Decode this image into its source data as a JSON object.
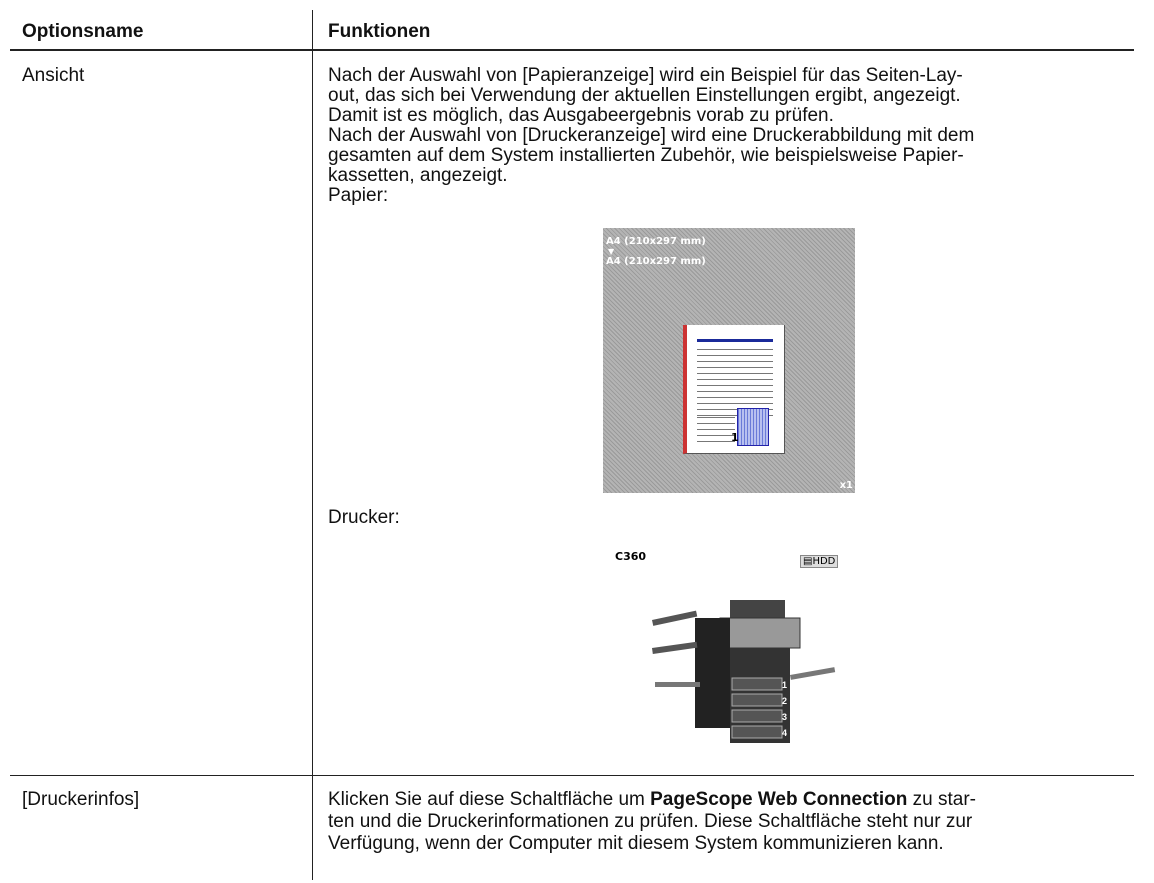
{
  "table": {
    "header": [
      "Optionsname",
      "Funktionen"
    ],
    "rows": [
      {
        "name": "Ansicht",
        "lines": [
          "Nach der Auswahl von [Papieranzeige] wird ein Beispiel für das Seiten-Lay-",
          "out, das sich bei Verwendung der aktuellen Einstellungen ergibt, angezeigt.",
          "Damit ist es möglich, das Ausgabeergebnis vorab zu prüfen.",
          "Nach der Auswahl von [Druckeranzeige] wird eine Druckerabbildung mit dem",
          "gesamten auf dem System installierten Zubehör, wie beispielsweise Papier-",
          "kassetten, angezeigt."
        ],
        "paper_label": "Papier:",
        "paper_preview": {
          "source": "A4 (210x297 mm)",
          "arrow": "▼",
          "output": "A4 (210x297 mm)",
          "page_number": "1",
          "copies": "x1"
        },
        "printer_label": "Drucker:",
        "printer_preview": {
          "model": "C360",
          "hdd": "HDD",
          "trays": [
            "1",
            "2",
            "3",
            "4"
          ]
        }
      },
      {
        "name": "[Druckerinfos]",
        "lines": [
          [
            "Klicken Sie auf diese Schaltfläche um ",
            "PageScope Web Connection",
            " zu star-"
          ],
          "ten und die Druckerinformationen zu prüfen. Diese Schaltfläche steht nur zur",
          "Verfügung, wenn der Computer mit diesem System kommunizieren kann."
        ]
      }
    ]
  }
}
